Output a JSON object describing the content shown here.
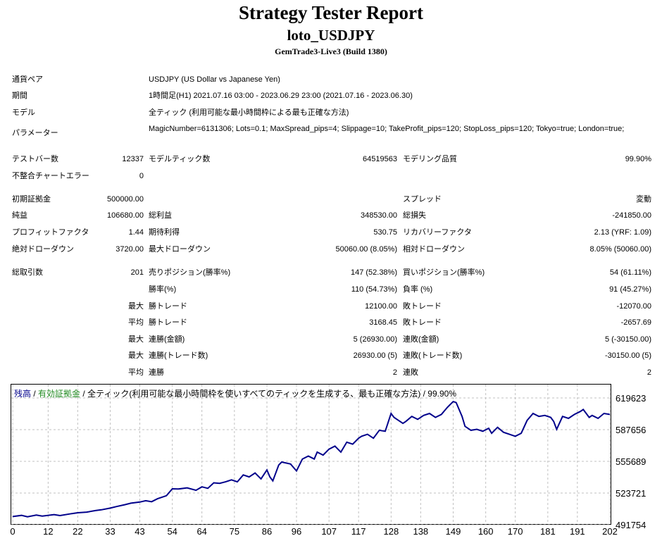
{
  "report": {
    "title": "Strategy Tester Report",
    "subtitle": "loto_USDJPY",
    "build": "GemTrade3-Live3 (Build 1380)"
  },
  "settings": {
    "symbol_label": "通貨ペア",
    "symbol_value": "USDJPY (US Dollar vs Japanese Yen)",
    "period_label": "期間",
    "period_value": "1時間足(H1) 2021.07.16 03:00 - 2023.06.29 23:00 (2021.07.16 - 2023.06.30)",
    "model_label": "モデル",
    "model_value": "全ティック (利用可能な最小時間枠による最も正確な方法)",
    "params_label": "パラメーター",
    "params_value": "MagicNumber=6131306; Lots=0.1; MaxSpread_pips=4; Slippage=10; TakeProfit_pips=120; StopLoss_pips=120; Tokyo=true; London=true;"
  },
  "test": {
    "bars_label": "テストバー数",
    "bars_value": "12337",
    "ticks_label": "モデルティック数",
    "ticks_value": "64519563",
    "quality_label": "モデリング品質",
    "quality_value": "99.90%",
    "errors_label": "不整合チャートエラー",
    "errors_value": "0"
  },
  "results": {
    "deposit_label": "初期証拠金",
    "deposit_value": "500000.00",
    "spread_label": "スプレッド",
    "spread_value": "変動",
    "net_label": "純益",
    "net_value": "106680.00",
    "gross_profit_label": "総利益",
    "gross_profit_value": "348530.00",
    "gross_loss_label": "総損失",
    "gross_loss_value": "-241850.00",
    "pf_label": "プロフィットファクタ",
    "pf_value": "1.44",
    "expected_label": "期待利得",
    "expected_value": "530.75",
    "recovery_label": "リカバリーファクタ",
    "recovery_value": "2.13 (YRF: 1.09)",
    "abs_dd_label": "絶対ドローダウン",
    "abs_dd_value": "3720.00",
    "max_dd_label": "最大ドローダウン",
    "max_dd_value": "50060.00 (8.05%)",
    "rel_dd_label": "相対ドローダウン",
    "rel_dd_value": "8.05% (50060.00)"
  },
  "trades": {
    "total_label": "総取引数",
    "total_value": "201",
    "short_label": "売りポジション(勝率%)",
    "short_value": "147 (52.38%)",
    "long_label": "買いポジション(勝率%)",
    "long_value": "54 (61.11%)",
    "win_rate_label": "勝率(%)",
    "win_rate_value": "110 (54.73%)",
    "loss_rate_label": "負率 (%)",
    "loss_rate_value": "91 (45.27%)",
    "max_label": "最大",
    "avg_label": "平均",
    "max_win_label": "勝トレード",
    "max_win_value": "12100.00",
    "max_loss_label": "敗トレード",
    "max_loss_value": "-12070.00",
    "avg_win_label": "勝トレード",
    "avg_win_value": "3168.45",
    "avg_loss_label": "敗トレード",
    "avg_loss_value": "-2657.69",
    "max_consec_wins_label": "連勝(金額)",
    "max_consec_wins_value": "5 (26930.00)",
    "max_consec_losses_label": "連敗(金額)",
    "max_consec_losses_value": "5 (-30150.00)",
    "max_consec_profit_label": "連勝(トレード数)",
    "max_consec_profit_value": "26930.00 (5)",
    "max_consec_loss_label": "連敗(トレード数)",
    "max_consec_loss_value": "-30150.00 (5)",
    "avg_consec_wins_label": "連勝",
    "avg_consec_wins_value": "2",
    "avg_consec_losses_label": "連敗",
    "avg_consec_losses_value": "2"
  },
  "legend": {
    "balance": "残高",
    "sep1": " / ",
    "equity": "有効証拠金",
    "sep2": " / ",
    "rest": "全ティック(利用可能な最小時間枠を使いすべてのティックを生成する、最も正確な方法) / 99.90%"
  },
  "colors": {
    "balance_line": "#00008b",
    "equity_text": "#228b22",
    "grid": "#c0c0c0"
  },
  "chart_data": {
    "type": "line",
    "x_ticks": [
      "0",
      "12",
      "22",
      "33",
      "43",
      "54",
      "64",
      "75",
      "86",
      "96",
      "107",
      "117",
      "128",
      "138",
      "149",
      "160",
      "170",
      "181",
      "191",
      "202"
    ],
    "y_ticks": [
      "619623",
      "587656",
      "555689",
      "523721",
      "491754"
    ],
    "xlim": [
      0,
      202
    ],
    "ylim": [
      491754,
      619623
    ],
    "grid": true,
    "series": [
      {
        "name": "残高",
        "color": "#00008b",
        "x": [
          0,
          3,
          5,
          8,
          10,
          14,
          16,
          20,
          22,
          25,
          28,
          30,
          33,
          35,
          38,
          40,
          43,
          45,
          47,
          49,
          52,
          54,
          56,
          59,
          62,
          64,
          66,
          68,
          70,
          72,
          74,
          76,
          78,
          80,
          82,
          84,
          86,
          87,
          88,
          90,
          91,
          94,
          96,
          98,
          100,
          102,
          103,
          105,
          107,
          109,
          111,
          113,
          115,
          117,
          118,
          120,
          122,
          124,
          126,
          128,
          129,
          130,
          132,
          133,
          135,
          137,
          139,
          141,
          143,
          145,
          147,
          149,
          150,
          152,
          153,
          155,
          157,
          159,
          161,
          162,
          164,
          166,
          168,
          170,
          172,
          174,
          176,
          178,
          180,
          182,
          183,
          184,
          186,
          188,
          190,
          192,
          193,
          195,
          196,
          198,
          200,
          202
        ],
        "values": [
          500000,
          501200,
          499800,
          501500,
          500500,
          502000,
          501000,
          503000,
          503800,
          504500,
          506000,
          506800,
          508500,
          510000,
          512000,
          513500,
          514600,
          516000,
          515000,
          518000,
          521000,
          528000,
          527800,
          529000,
          526500,
          530000,
          528500,
          534000,
          533500,
          535000,
          537000,
          535000,
          542000,
          540000,
          544000,
          538000,
          547000,
          540000,
          536000,
          552000,
          555000,
          553000,
          546000,
          558000,
          561000,
          558000,
          565000,
          562000,
          568000,
          571000,
          565000,
          575000,
          573000,
          579000,
          581000,
          583000,
          579000,
          587000,
          586000,
          604000,
          600000,
          598000,
          594000,
          596000,
          601000,
          598000,
          602000,
          604000,
          600000,
          603000,
          610000,
          616000,
          615000,
          601000,
          591000,
          587000,
          588000,
          586000,
          589000,
          584000,
          590000,
          585000,
          583000,
          581000,
          584000,
          597000,
          604000,
          601000,
          602000,
          600000,
          596000,
          588000,
          601000,
          599000,
          603000,
          606000,
          608000,
          600000,
          602000,
          599000,
          604000,
          603000
        ]
      }
    ]
  }
}
